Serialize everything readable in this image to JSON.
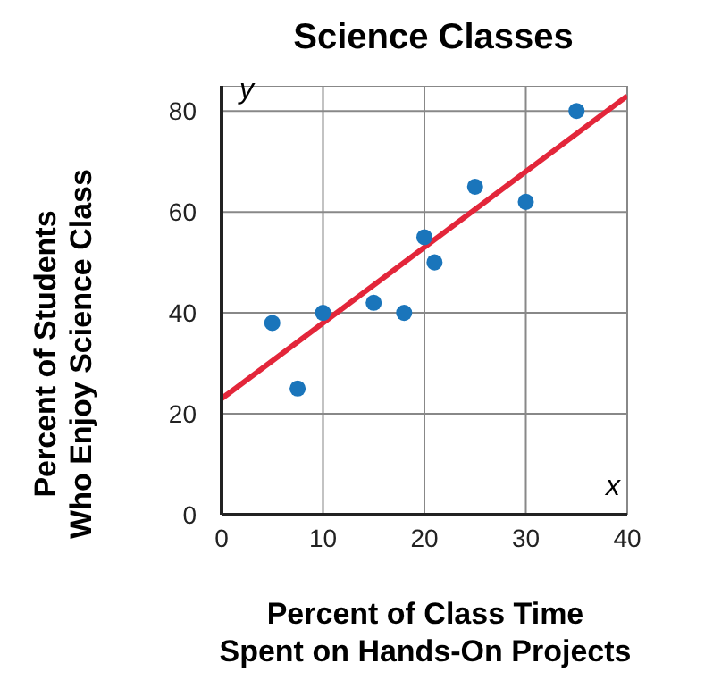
{
  "chart_data": {
    "type": "scatter",
    "title": "Science Classes",
    "xlabel": "Percent of Class Time\nSpent on Hands-On Projects",
    "ylabel": "Percent of Students\nWho Enjoy Science Class",
    "annotations": [
      "y",
      "x"
    ],
    "xlim": [
      0,
      40
    ],
    "xticks": [
      0,
      10,
      20,
      30,
      40
    ],
    "ylim": [
      0,
      85
    ],
    "yticks": [
      0,
      20,
      40,
      60,
      80
    ],
    "grid": true,
    "marker": "circle",
    "series": [
      {
        "color": "#1a75bb",
        "x": [
          5,
          7.5,
          10,
          15,
          18,
          20,
          21,
          25,
          30,
          35
        ],
        "values": [
          38,
          25,
          40,
          42,
          40,
          55,
          50,
          65,
          62,
          80
        ]
      },
      {
        "type": "line",
        "color": "#e3263a",
        "marker": "none",
        "x": [
          0,
          40
        ],
        "values": [
          23,
          83
        ]
      }
    ]
  }
}
